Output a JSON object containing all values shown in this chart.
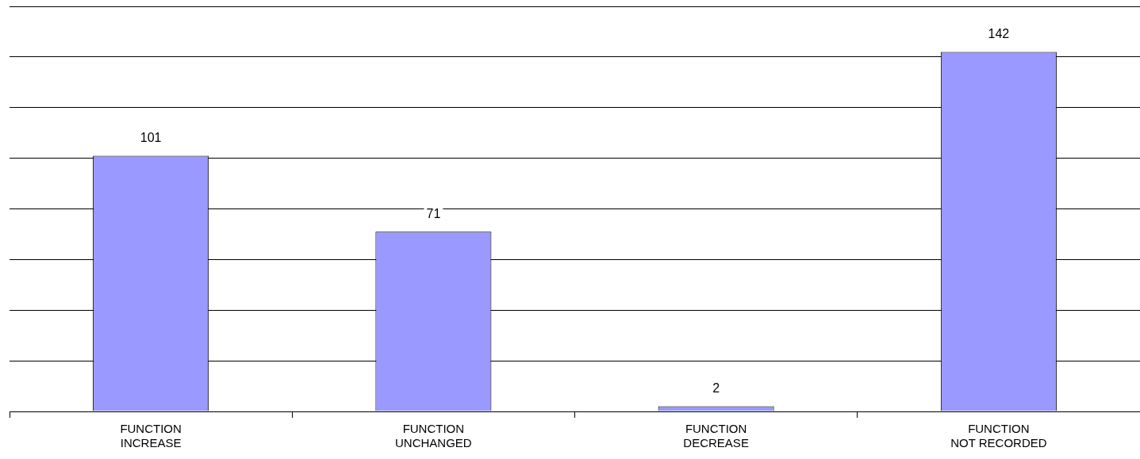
{
  "chart_data": {
    "type": "bar",
    "categories": [
      "FUNCTION\nINCREASE",
      "FUNCTION\nUNCHANGED",
      "FUNCTION\nDECREASE",
      "FUNCTION\nNOT RECORDED"
    ],
    "values": [
      101,
      71,
      2,
      142
    ],
    "color": "#9999ff",
    "data_labels": true,
    "ylim": [
      0,
      160
    ],
    "grid": "y",
    "tick_labels": "x"
  }
}
